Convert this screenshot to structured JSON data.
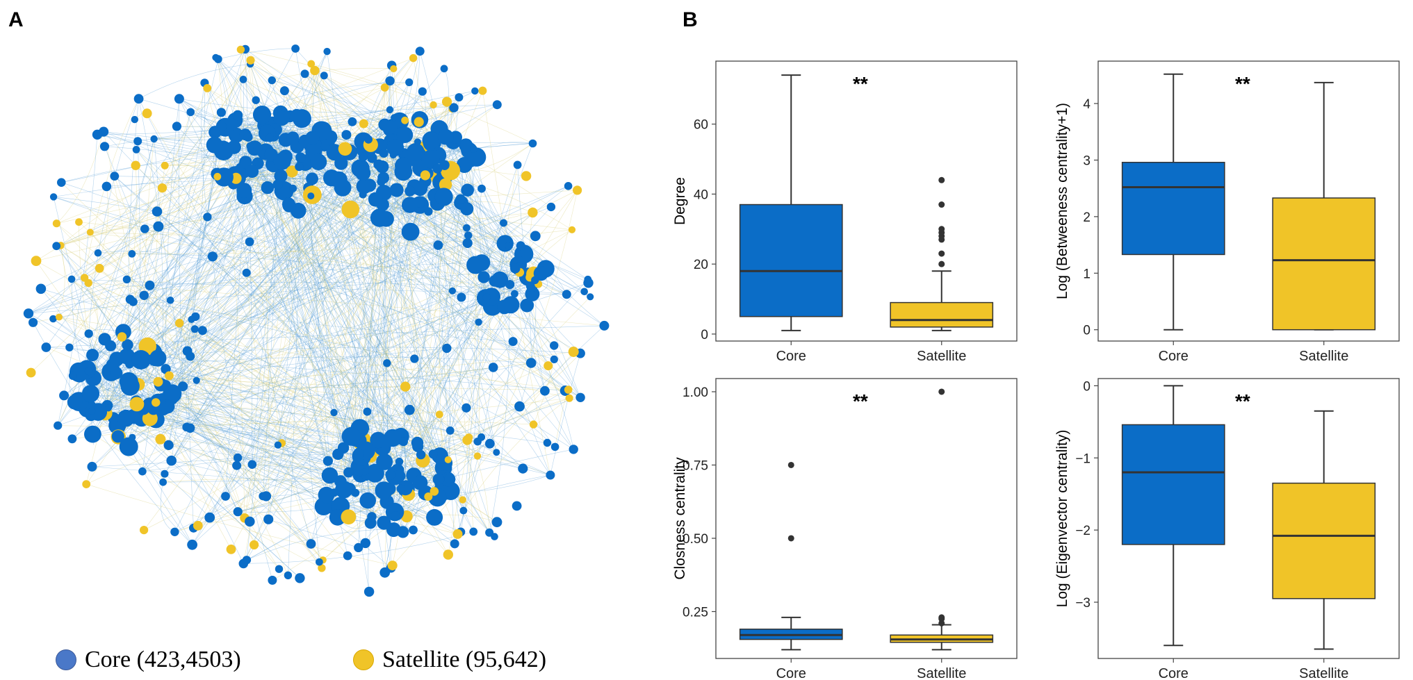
{
  "panel_a_label": "A",
  "panel_b_label": "B",
  "colors": {
    "core": "#0b6dc7",
    "satellite": "#f0c428",
    "core_legend": "#4a78c8"
  },
  "network": {
    "legend": [
      {
        "label": "Core (423,4503)",
        "color": "#4a78c8"
      },
      {
        "label": "Satellite (95,642)",
        "color": "#f0c428"
      }
    ]
  },
  "chart_data": [
    {
      "type": "box",
      "id": "degree",
      "ylabel": "Degree",
      "categories": [
        "Core",
        "Satellite"
      ],
      "significance": "**",
      "ylim": [
        -2,
        78
      ],
      "yticks": [
        0,
        20,
        40,
        60
      ],
      "boxes": [
        {
          "category": "Core",
          "whisker_low": 1,
          "q1": 5,
          "median": 18,
          "q3": 37,
          "whisker_high": 74,
          "outliers": []
        },
        {
          "category": "Satellite",
          "whisker_low": 1,
          "q1": 2,
          "median": 4,
          "q3": 9,
          "whisker_high": 18,
          "outliers": [
            20,
            23,
            27,
            28,
            29,
            30,
            37,
            44
          ]
        }
      ]
    },
    {
      "type": "box",
      "id": "betweenness",
      "ylabel": "Log (Betweeness centrality+1)",
      "categories": [
        "Core",
        "Satellite"
      ],
      "significance": "**",
      "ylim": [
        -0.2,
        4.75
      ],
      "yticks": [
        0,
        1,
        2,
        3,
        4
      ],
      "boxes": [
        {
          "category": "Core",
          "whisker_low": 0,
          "q1": 1.33,
          "median": 2.52,
          "q3": 2.96,
          "whisker_high": 4.52,
          "outliers": []
        },
        {
          "category": "Satellite",
          "whisker_low": 0,
          "q1": 0,
          "median": 1.23,
          "q3": 2.33,
          "whisker_high": 4.37,
          "outliers": []
        }
      ]
    },
    {
      "type": "box",
      "id": "closeness",
      "ylabel": "Closness centrality",
      "categories": [
        "Core",
        "Satellite"
      ],
      "significance": "**",
      "ylim": [
        0.09,
        1.045
      ],
      "yticks": [
        0.25,
        0.5,
        0.75,
        1.0
      ],
      "ytick_labels": [
        "0.25",
        "0.50",
        "0.75",
        "1.00"
      ],
      "boxes": [
        {
          "category": "Core",
          "whisker_low": 0.12,
          "q1": 0.155,
          "median": 0.17,
          "q3": 0.19,
          "whisker_high": 0.23,
          "outliers": [
            0.5,
            0.75
          ]
        },
        {
          "category": "Satellite",
          "whisker_low": 0.12,
          "q1": 0.145,
          "median": 0.155,
          "q3": 0.17,
          "whisker_high": 0.205,
          "outliers": [
            0.21,
            0.225,
            0.23,
            1.0
          ]
        }
      ]
    },
    {
      "type": "box",
      "id": "eigenvector",
      "ylabel": "Log (Eigenvector centrality)",
      "categories": [
        "Core",
        "Satellite"
      ],
      "significance": "**",
      "ylim": [
        -3.78,
        0.1
      ],
      "yticks": [
        -3,
        -2,
        -1,
        0
      ],
      "ytick_labels": [
        "−3",
        "−2",
        "−1",
        "0"
      ],
      "boxes": [
        {
          "category": "Core",
          "whisker_low": -3.6,
          "q1": -2.2,
          "median": -1.2,
          "q3": -0.54,
          "whisker_high": 0,
          "outliers": []
        },
        {
          "category": "Satellite",
          "whisker_low": -3.65,
          "q1": -2.95,
          "median": -2.08,
          "q3": -1.35,
          "whisker_high": -0.35,
          "outliers": []
        }
      ]
    }
  ]
}
